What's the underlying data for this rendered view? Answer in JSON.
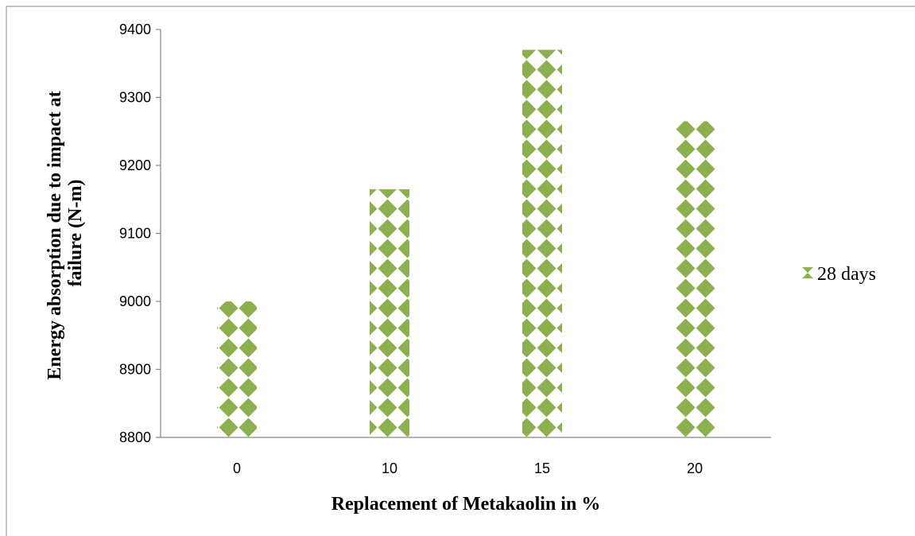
{
  "chart_data": {
    "type": "bar",
    "title": "",
    "xlabel": "Replacement of Metakaolin in %",
    "ylabel_lines": [
      "Energy absorption due to impact at",
      "failure (N-m)"
    ],
    "categories": [
      "0",
      "10",
      "15",
      "20"
    ],
    "series": [
      {
        "name": "28 days",
        "values": [
          9000,
          9165,
          9370,
          9265
        ]
      }
    ],
    "ylim": [
      8800,
      9400
    ],
    "yticks": [
      8800,
      8900,
      9000,
      9100,
      9200,
      9300,
      9400
    ],
    "grid": false,
    "legend_position": "right",
    "bar_color": "#8db04f",
    "bar_pattern": "diamond-checker"
  }
}
